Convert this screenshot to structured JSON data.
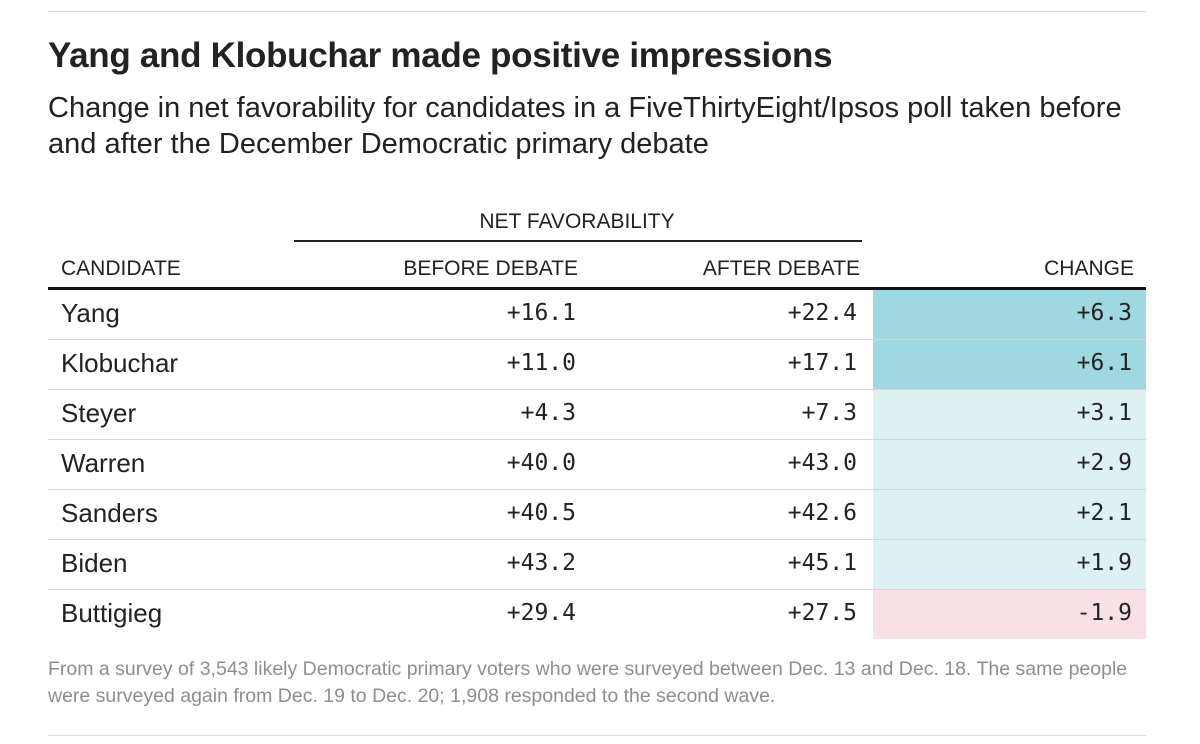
{
  "title": "Yang and Klobuchar made positive impressions",
  "subtitle": "Change in net favorability for candidates in a FiveThirtyEight/Ipsos poll taken before and after the December Democratic primary debate",
  "note": "From a survey of 3,543 likely Democratic primary voters who were surveyed between Dec. 13 and Dec. 18. The same people were surveyed again from Dec. 19 to Dec. 20; 1,908 responded to the second wave.",
  "colors": {
    "strong_positive": "#9fd8e0",
    "mild_positive": "#ddf1f3",
    "negative": "#f9e0e6"
  },
  "chart_data": {
    "type": "table",
    "title": "Yang and Klobuchar made positive impressions",
    "group_header": "NET FAVORABILITY",
    "columns": [
      "CANDIDATE",
      "BEFORE DEBATE",
      "AFTER DEBATE",
      "CHANGE"
    ],
    "rows": [
      {
        "candidate": "Yang",
        "before": "+16.1",
        "after": "+22.4",
        "change": "+6.3"
      },
      {
        "candidate": "Klobuchar",
        "before": "+11.0",
        "after": "+17.1",
        "change": "+6.1"
      },
      {
        "candidate": "Steyer",
        "before": "+4.3",
        "after": "+7.3",
        "change": "+3.1"
      },
      {
        "candidate": "Warren",
        "before": "+40.0",
        "after": "+43.0",
        "change": "+2.9"
      },
      {
        "candidate": "Sanders",
        "before": "+40.5",
        "after": "+42.6",
        "change": "+2.1"
      },
      {
        "candidate": "Biden",
        "before": "+43.2",
        "after": "+45.1",
        "change": "+1.9"
      },
      {
        "candidate": "Buttigieg",
        "before": "+29.4",
        "after": "+27.5",
        "change": "-1.9"
      }
    ]
  }
}
